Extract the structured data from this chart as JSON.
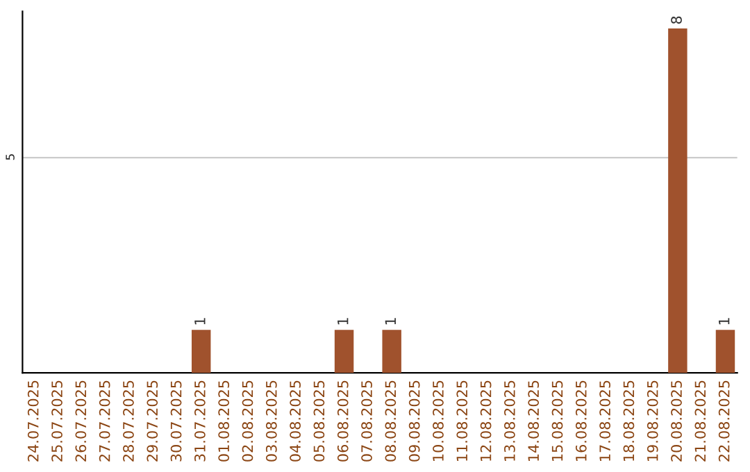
{
  "chart_data": {
    "type": "bar",
    "categories": [
      "24.07.2025",
      "25.07.2025",
      "26.07.2025",
      "27.07.2025",
      "28.07.2025",
      "29.07.2025",
      "30.07.2025",
      "31.07.2025",
      "01.08.2025",
      "02.08.2025",
      "03.08.2025",
      "04.08.2025",
      "05.08.2025",
      "06.08.2025",
      "07.08.2025",
      "08.08.2025",
      "09.08.2025",
      "10.08.2025",
      "11.08.2025",
      "12.08.2025",
      "13.08.2025",
      "14.08.2025",
      "15.08.2025",
      "16.08.2025",
      "17.08.2025",
      "18.08.2025",
      "19.08.2025",
      "20.08.2025",
      "21.08.2025",
      "22.08.2025"
    ],
    "values": [
      0,
      0,
      0,
      0,
      0,
      0,
      0,
      1,
      0,
      0,
      0,
      0,
      0,
      1,
      0,
      1,
      0,
      0,
      0,
      0,
      0,
      0,
      0,
      0,
      0,
      0,
      0,
      8,
      0,
      1
    ],
    "value_labels": [
      null,
      null,
      null,
      null,
      null,
      null,
      null,
      "1",
      null,
      null,
      null,
      null,
      null,
      "1",
      null,
      "1",
      null,
      null,
      null,
      null,
      null,
      null,
      null,
      null,
      null,
      null,
      null,
      "8",
      null,
      "1"
    ],
    "color": "#a0522d",
    "ylim": [
      0,
      8.4
    ],
    "yticks": [
      5
    ],
    "grid": "y",
    "legend": false
  }
}
